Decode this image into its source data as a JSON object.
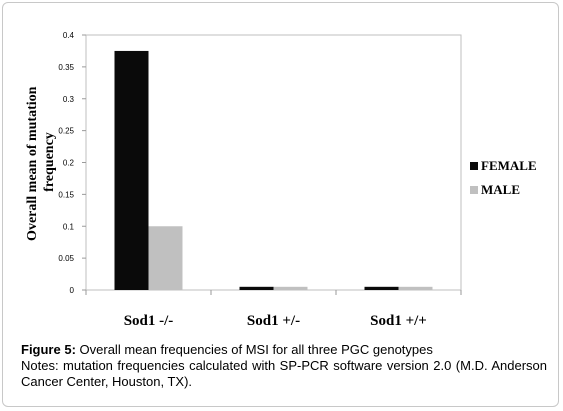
{
  "chart_data": {
    "type": "bar",
    "categories": [
      "Sod1 -/-",
      "Sod1 +/-",
      "Sod1 +/+"
    ],
    "series": [
      {
        "name": "FEMALE",
        "values": [
          0.375,
          0.005,
          0.005
        ],
        "color": "#0a0a0a"
      },
      {
        "name": "MALE",
        "values": [
          0.1,
          0.005,
          0.005
        ],
        "color": "#c0c0c0"
      }
    ],
    "ylabel": "Overall mean of mutation frequency",
    "ylim": [
      0,
      0.4
    ],
    "yticks": [
      "0",
      "0.05",
      "0.1",
      "0.15",
      "0.2",
      "0.25",
      "0.3",
      "0.35",
      "0.4"
    ],
    "grid": false,
    "legend_position": "right"
  },
  "caption": {
    "label": "Figure 5:",
    "text": "Overall mean frequencies of MSI for all three PGC genotypes",
    "notes": "Notes: mutation frequencies calculated with SP-PCR software version 2.0 (M.D. Anderson Cancer Center, Houston, TX)."
  }
}
